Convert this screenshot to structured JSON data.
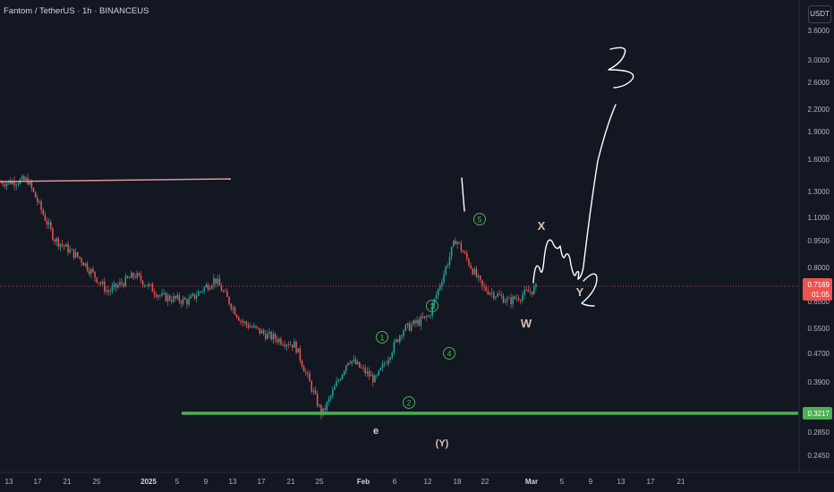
{
  "header": {
    "title": "Fantom / TetherUS · 1h · BINANCEUS",
    "unit_button": "USDT"
  },
  "price_axis": {
    "labels": [
      "3.6000",
      "3.0000",
      "2.6000",
      "2.2000",
      "1.9000",
      "1.6000",
      "1.3000",
      "1.1000",
      "0.9500",
      "0.8000",
      "0.6500",
      "0.5500",
      "0.4700",
      "0.3900",
      "0.2850",
      "0.2450"
    ],
    "current_price": "0.7169",
    "countdown": "01:05",
    "support_price": "0.3217"
  },
  "time_axis": {
    "labels": [
      "13",
      "17",
      "21",
      "25",
      "2025",
      "5",
      "9",
      "13",
      "17",
      "21",
      "25",
      "Feb",
      "6",
      "12",
      "18",
      "22",
      "Mar",
      "5",
      "9",
      "13",
      "17",
      "21"
    ]
  },
  "annotations": {
    "wave_labels": [
      "1",
      "2",
      "3",
      "4",
      "5"
    ],
    "letters": {
      "e": "e",
      "Y_paren": "(Y)",
      "W": "W",
      "X": "X",
      "Y": "Y"
    },
    "handwritten": {
      "one": "1",
      "two": "2",
      "three": "3"
    }
  },
  "colors": {
    "background": "#131722",
    "up_candle": "#26a69a",
    "down_candle": "#ef5350",
    "support_line": "#4caf50",
    "resistance_line": "#d49a98",
    "current_price_line": "#ef5350",
    "wave_circle": "#4caf50",
    "label_tan": "#d7c3b4"
  },
  "chart_data": {
    "type": "candlestick",
    "title": "Fantom / TetherUS · 1h · BINANCEUS",
    "scale": "log",
    "ylim": [
      0.24,
      3.7
    ],
    "x_ticks": [
      "13",
      "17",
      "21",
      "25",
      "2025",
      "5",
      "9",
      "13",
      "17",
      "21",
      "25",
      "Feb",
      "6",
      "12",
      "18",
      "22",
      "Mar",
      "5",
      "9",
      "13",
      "17",
      "21"
    ],
    "y_ticks": [
      3.6,
      3.0,
      2.6,
      2.2,
      1.9,
      1.6,
      1.3,
      1.1,
      0.95,
      0.8,
      0.65,
      0.55,
      0.47,
      0.39,
      0.285,
      0.245
    ],
    "approx_close_path": [
      {
        "x": "Dec 13",
        "y": 1.4
      },
      {
        "x": "Dec 17",
        "y": 1.42
      },
      {
        "x": "Dec 21",
        "y": 0.98
      },
      {
        "x": "Dec 25",
        "y": 0.86
      },
      {
        "x": "2025-01-01",
        "y": 0.7
      },
      {
        "x": "Jan 5",
        "y": 0.78
      },
      {
        "x": "Jan 9",
        "y": 0.68
      },
      {
        "x": "Jan 13",
        "y": 0.66
      },
      {
        "x": "Jan 17",
        "y": 0.76
      },
      {
        "x": "Jan 21",
        "y": 0.58
      },
      {
        "x": "Jan 25",
        "y": 0.53
      },
      {
        "x": "Feb 1",
        "y": 0.5
      },
      {
        "x": "Feb 3",
        "y": 0.3217
      },
      {
        "x": "Feb 6",
        "y": 0.46
      },
      {
        "x": "Feb 12",
        "y": 0.4
      },
      {
        "x": "Feb 15",
        "y": 0.55
      },
      {
        "x": "Feb 18",
        "y": 0.6
      },
      {
        "x": "Feb 21",
        "y": 0.98
      },
      {
        "x": "Feb 24",
        "y": 0.72
      },
      {
        "x": "Feb 27",
        "y": 0.66
      },
      {
        "x": "Mar 1",
        "y": 0.7169
      }
    ],
    "current_price": 0.7169,
    "support_level": 0.3217,
    "resistance_level": 1.42
  }
}
